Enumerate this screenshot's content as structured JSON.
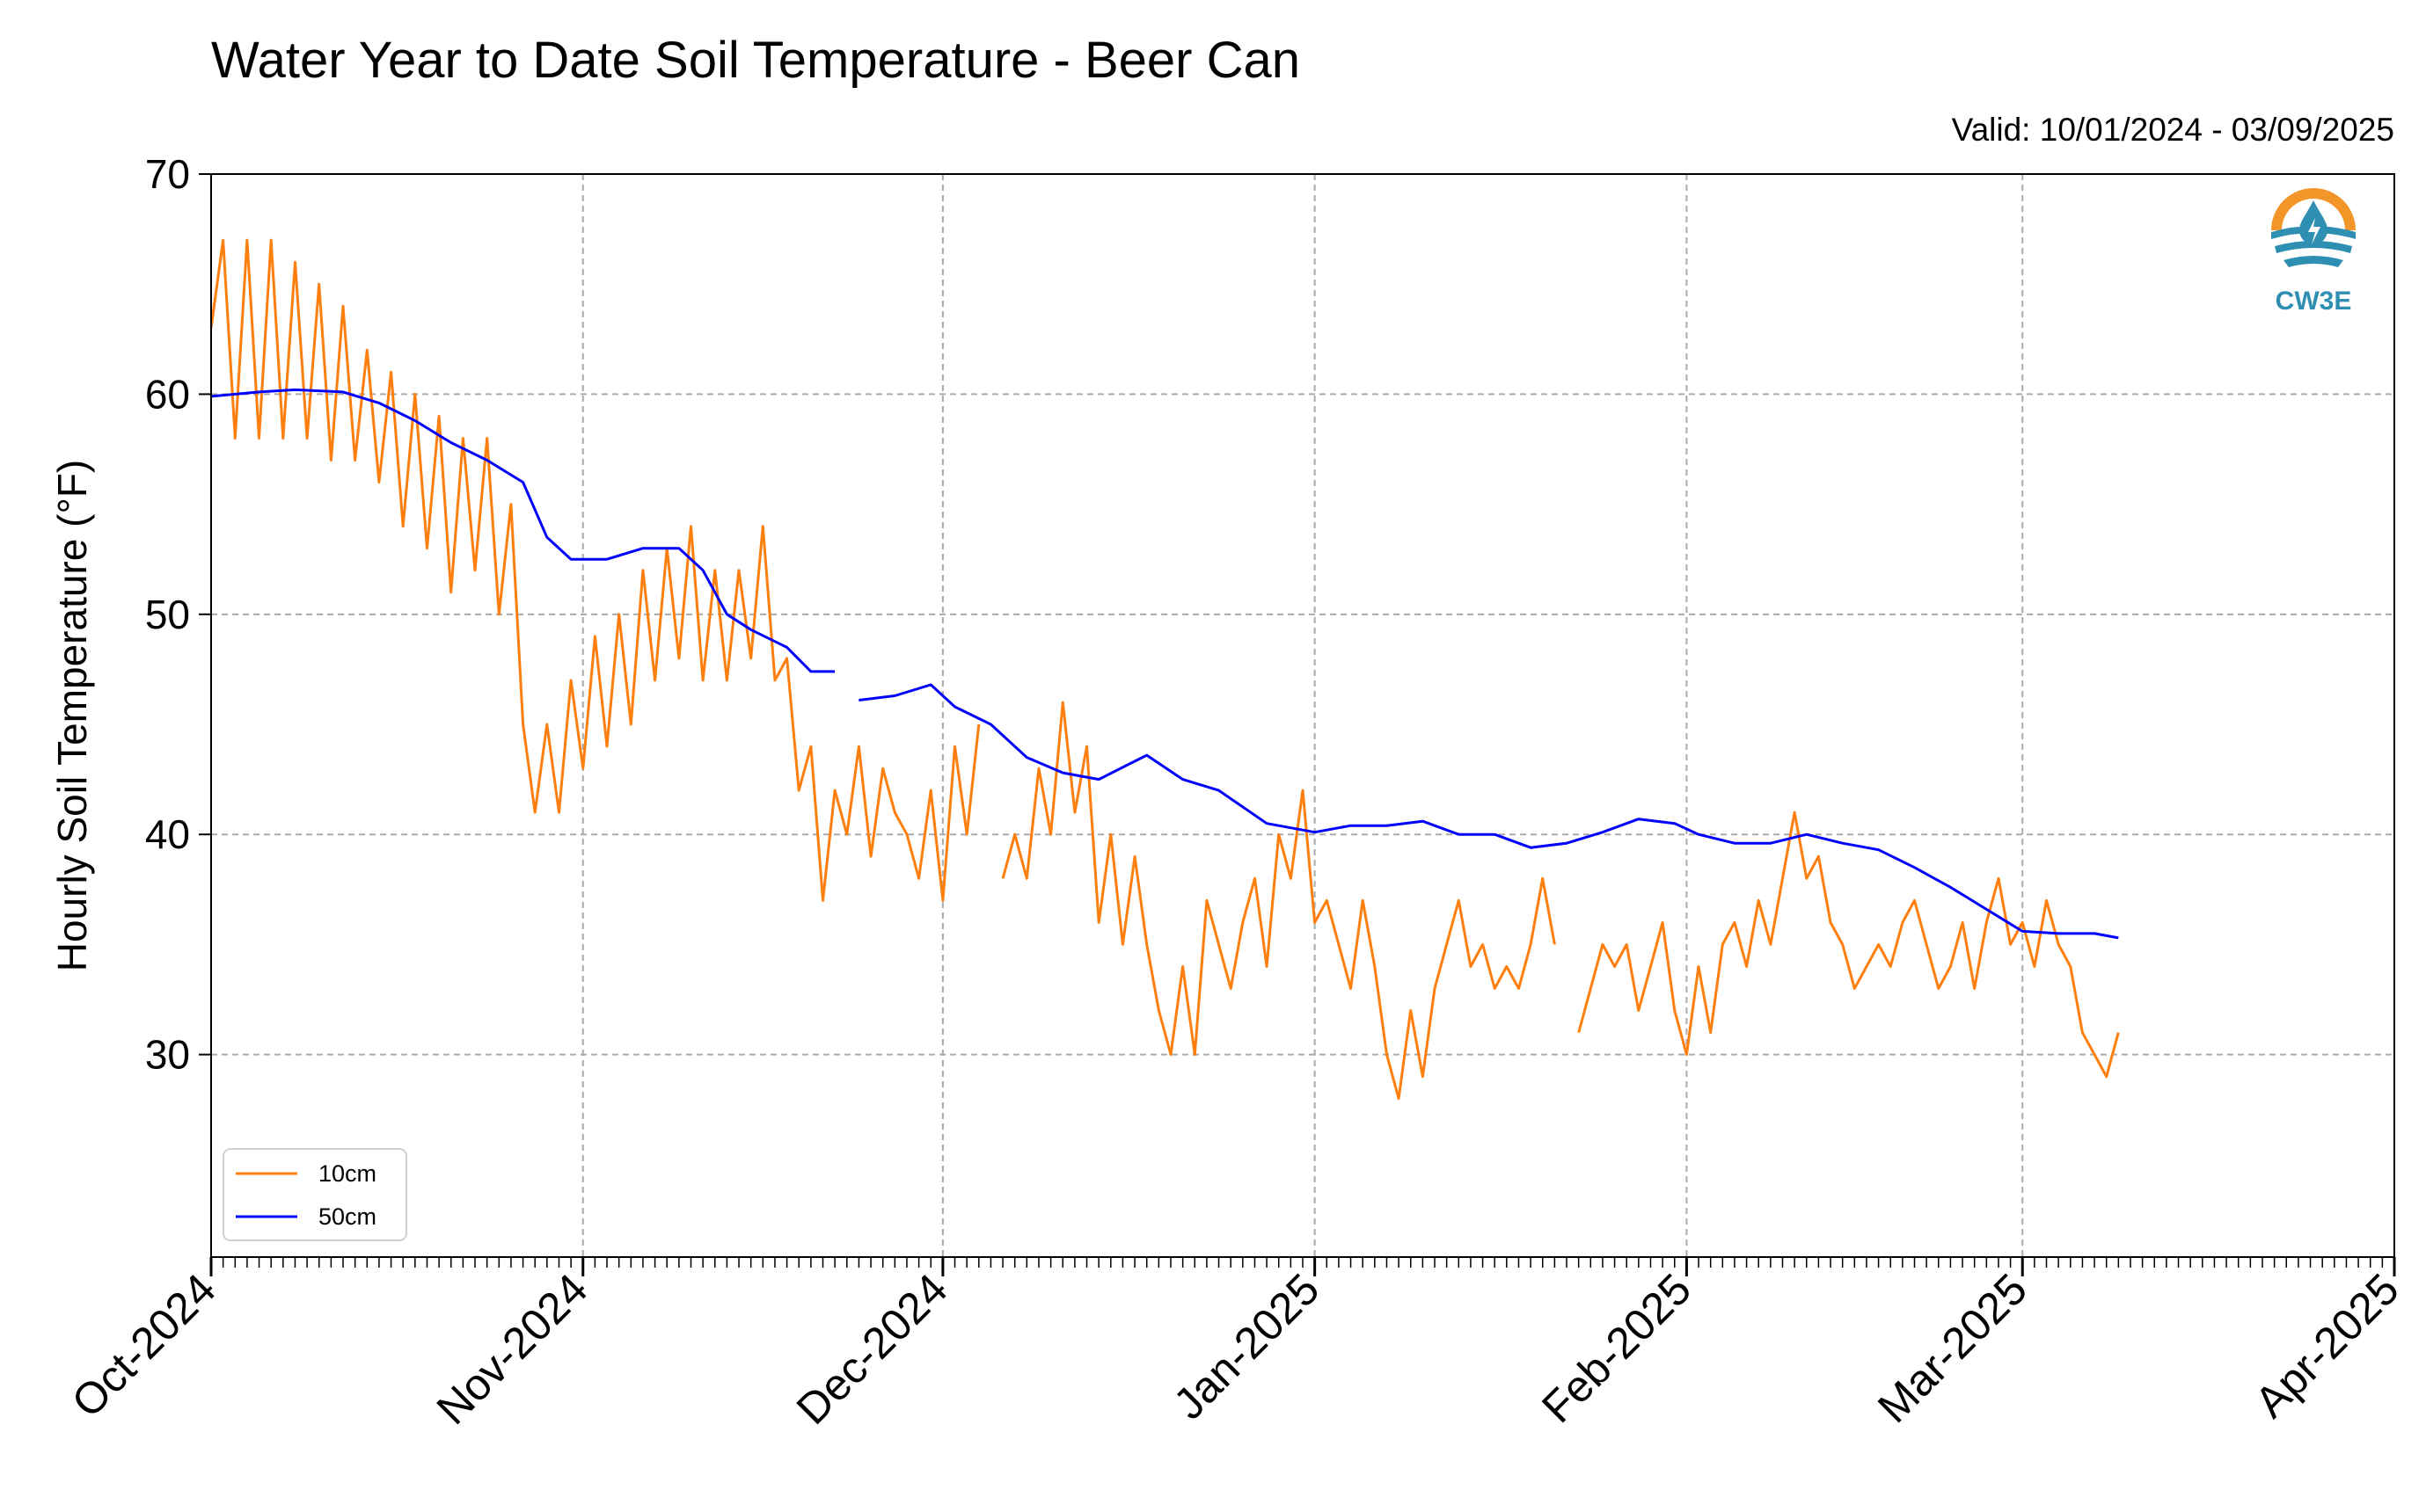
{
  "chart_data": {
    "type": "line",
    "title": "Water Year to Date Soil Temperature - Beer Can",
    "subtitle": "Valid: 10/01/2024 - 03/09/2025",
    "xlabel": "",
    "ylabel": "Hourly Soil Temperature (°F)",
    "ylim": [
      20.8,
      70
    ],
    "xlim": [
      "2024-10-01",
      "2025-04-01"
    ],
    "x_tick_labels": [
      "Oct-2024",
      "Nov-2024",
      "Dec-2024",
      "Jan-2025",
      "Feb-2025",
      "Mar-2025",
      "Apr-2025"
    ],
    "x_tick_dates": [
      "2024-10-01",
      "2024-11-01",
      "2024-12-01",
      "2025-01-01",
      "2025-02-01",
      "2025-03-01",
      "2025-04-01"
    ],
    "y_ticks": [
      30,
      40,
      50,
      60,
      70
    ],
    "grid": true,
    "legend_position": "lower-left",
    "series": [
      {
        "name": "10cm",
        "color": "#ff7f0e",
        "points": [
          [
            "2024-10-01",
            63
          ],
          [
            "2024-10-02",
            67
          ],
          [
            "2024-10-03",
            58
          ],
          [
            "2024-10-04",
            67
          ],
          [
            "2024-10-05",
            58
          ],
          [
            "2024-10-06",
            67
          ],
          [
            "2024-10-07",
            58
          ],
          [
            "2024-10-08",
            66
          ],
          [
            "2024-10-09",
            58
          ],
          [
            "2024-10-10",
            65
          ],
          [
            "2024-10-11",
            57
          ],
          [
            "2024-10-12",
            64
          ],
          [
            "2024-10-13",
            57
          ],
          [
            "2024-10-14",
            62
          ],
          [
            "2024-10-15",
            56
          ],
          [
            "2024-10-16",
            61
          ],
          [
            "2024-10-17",
            54
          ],
          [
            "2024-10-18",
            60
          ],
          [
            "2024-10-19",
            53
          ],
          [
            "2024-10-20",
            59
          ],
          [
            "2024-10-21",
            51
          ],
          [
            "2024-10-22",
            58
          ],
          [
            "2024-10-23",
            52
          ],
          [
            "2024-10-24",
            58
          ],
          [
            "2024-10-25",
            50
          ],
          [
            "2024-10-26",
            55
          ],
          [
            "2024-10-27",
            45
          ],
          [
            "2024-10-28",
            41
          ],
          [
            "2024-10-29",
            45
          ],
          [
            "2024-10-30",
            41
          ],
          [
            "2024-10-31",
            47
          ],
          [
            "2024-11-01",
            43
          ],
          [
            "2024-11-02",
            49
          ],
          [
            "2024-11-03",
            44
          ],
          [
            "2024-11-04",
            50
          ],
          [
            "2024-11-05",
            45
          ],
          [
            "2024-11-06",
            52
          ],
          [
            "2024-11-07",
            47
          ],
          [
            "2024-11-08",
            53
          ],
          [
            "2024-11-09",
            48
          ],
          [
            "2024-11-10",
            54
          ],
          [
            "2024-11-11",
            47
          ],
          [
            "2024-11-12",
            52
          ],
          [
            "2024-11-13",
            47
          ],
          [
            "2024-11-14",
            52
          ],
          [
            "2024-11-15",
            48
          ],
          [
            "2024-11-16",
            54
          ],
          [
            "2024-11-17",
            47
          ],
          [
            "2024-11-18",
            48
          ],
          [
            "2024-11-19",
            42
          ],
          [
            "2024-11-20",
            44
          ],
          [
            "2024-11-21",
            37
          ],
          [
            "2024-11-22",
            42
          ],
          [
            "2024-11-23",
            40
          ],
          [
            "2024-11-24",
            44
          ],
          [
            "2024-11-25",
            39
          ],
          [
            "2024-11-26",
            43
          ],
          [
            "2024-11-27",
            41
          ],
          [
            "2024-11-28",
            40
          ],
          [
            "2024-11-29",
            38
          ],
          [
            "2024-11-30",
            42
          ],
          [
            "2024-12-01",
            37
          ],
          [
            "2024-12-02",
            44
          ],
          [
            "2024-12-03",
            40
          ],
          [
            "2024-12-04",
            45
          ],
          [
            "2024-12-05",
            null
          ],
          [
            "2024-12-06",
            38
          ],
          [
            "2024-12-07",
            40
          ],
          [
            "2024-12-08",
            38
          ],
          [
            "2024-12-09",
            43
          ],
          [
            "2024-12-10",
            40
          ],
          [
            "2024-12-11",
            46
          ],
          [
            "2024-12-12",
            41
          ],
          [
            "2024-12-13",
            44
          ],
          [
            "2024-12-14",
            36
          ],
          [
            "2024-12-15",
            40
          ],
          [
            "2024-12-16",
            35
          ],
          [
            "2024-12-17",
            39
          ],
          [
            "2024-12-18",
            35
          ],
          [
            "2024-12-19",
            32
          ],
          [
            "2024-12-20",
            30
          ],
          [
            "2024-12-21",
            34
          ],
          [
            "2024-12-22",
            30
          ],
          [
            "2024-12-23",
            37
          ],
          [
            "2024-12-24",
            35
          ],
          [
            "2024-12-25",
            33
          ],
          [
            "2024-12-26",
            36
          ],
          [
            "2024-12-27",
            38
          ],
          [
            "2024-12-28",
            34
          ],
          [
            "2024-12-29",
            40
          ],
          [
            "2024-12-30",
            38
          ],
          [
            "2024-12-31",
            42
          ],
          [
            "2025-01-01",
            36
          ],
          [
            "2025-01-02",
            37
          ],
          [
            "2025-01-03",
            35
          ],
          [
            "2025-01-04",
            33
          ],
          [
            "2025-01-05",
            37
          ],
          [
            "2025-01-06",
            34
          ],
          [
            "2025-01-07",
            30
          ],
          [
            "2025-01-08",
            28
          ],
          [
            "2025-01-09",
            32
          ],
          [
            "2025-01-10",
            29
          ],
          [
            "2025-01-11",
            33
          ],
          [
            "2025-01-12",
            35
          ],
          [
            "2025-01-13",
            37
          ],
          [
            "2025-01-14",
            34
          ],
          [
            "2025-01-15",
            35
          ],
          [
            "2025-01-16",
            33
          ],
          [
            "2025-01-17",
            34
          ],
          [
            "2025-01-18",
            33
          ],
          [
            "2025-01-19",
            35
          ],
          [
            "2025-01-20",
            38
          ],
          [
            "2025-01-21",
            35
          ],
          [
            "2025-01-22",
            null
          ],
          [
            "2025-01-23",
            31
          ],
          [
            "2025-01-24",
            33
          ],
          [
            "2025-01-25",
            35
          ],
          [
            "2025-01-26",
            34
          ],
          [
            "2025-01-27",
            35
          ],
          [
            "2025-01-28",
            32
          ],
          [
            "2025-01-29",
            34
          ],
          [
            "2025-01-30",
            36
          ],
          [
            "2025-01-31",
            32
          ],
          [
            "2025-02-01",
            30
          ],
          [
            "2025-02-02",
            34
          ],
          [
            "2025-02-03",
            31
          ],
          [
            "2025-02-04",
            35
          ],
          [
            "2025-02-05",
            36
          ],
          [
            "2025-02-06",
            34
          ],
          [
            "2025-02-07",
            37
          ],
          [
            "2025-02-08",
            35
          ],
          [
            "2025-02-09",
            38
          ],
          [
            "2025-02-10",
            41
          ],
          [
            "2025-02-11",
            38
          ],
          [
            "2025-02-12",
            39
          ],
          [
            "2025-02-13",
            36
          ],
          [
            "2025-02-14",
            35
          ],
          [
            "2025-02-15",
            33
          ],
          [
            "2025-02-16",
            34
          ],
          [
            "2025-02-17",
            35
          ],
          [
            "2025-02-18",
            34
          ],
          [
            "2025-02-19",
            36
          ],
          [
            "2025-02-20",
            37
          ],
          [
            "2025-02-21",
            35
          ],
          [
            "2025-02-22",
            33
          ],
          [
            "2025-02-23",
            34
          ],
          [
            "2025-02-24",
            36
          ],
          [
            "2025-02-25",
            33
          ],
          [
            "2025-02-26",
            36
          ],
          [
            "2025-02-27",
            38
          ],
          [
            "2025-02-28",
            35
          ],
          [
            "2025-03-01",
            36
          ],
          [
            "2025-03-02",
            34
          ],
          [
            "2025-03-03",
            37
          ],
          [
            "2025-03-04",
            35
          ],
          [
            "2025-03-05",
            34
          ],
          [
            "2025-03-06",
            31
          ],
          [
            "2025-03-07",
            30
          ],
          [
            "2025-03-08",
            29
          ],
          [
            "2025-03-09",
            31
          ]
        ]
      },
      {
        "name": "50cm",
        "color": "#0000ff",
        "points": [
          [
            "2024-10-01",
            59.9
          ],
          [
            "2024-10-05",
            60.1
          ],
          [
            "2024-10-08",
            60.2
          ],
          [
            "2024-10-12",
            60.1
          ],
          [
            "2024-10-15",
            59.6
          ],
          [
            "2024-10-18",
            58.8
          ],
          [
            "2024-10-21",
            57.8
          ],
          [
            "2024-10-24",
            57
          ],
          [
            "2024-10-27",
            56
          ],
          [
            "2024-10-29",
            53.5
          ],
          [
            "2024-10-31",
            52.5
          ],
          [
            "2024-11-03",
            52.5
          ],
          [
            "2024-11-06",
            53
          ],
          [
            "2024-11-09",
            53
          ],
          [
            "2024-11-11",
            52
          ],
          [
            "2024-11-13",
            50
          ],
          [
            "2024-11-15",
            49.3
          ],
          [
            "2024-11-18",
            48.5
          ],
          [
            "2024-11-20",
            47.4
          ],
          [
            "2024-11-22",
            47.4
          ],
          [
            "2024-11-23",
            null
          ],
          [
            "2024-11-24",
            46.1
          ],
          [
            "2024-11-27",
            46.3
          ],
          [
            "2024-11-30",
            46.8
          ],
          [
            "2024-12-02",
            45.8
          ],
          [
            "2024-12-05",
            45
          ],
          [
            "2024-12-08",
            43.5
          ],
          [
            "2024-12-11",
            42.8
          ],
          [
            "2024-12-14",
            42.5
          ],
          [
            "2024-12-18",
            43.6
          ],
          [
            "2024-12-21",
            42.5
          ],
          [
            "2024-12-24",
            42
          ],
          [
            "2024-12-28",
            40.5
          ],
          [
            "2025-01-01",
            40.1
          ],
          [
            "2025-01-04",
            40.4
          ],
          [
            "2025-01-07",
            40.4
          ],
          [
            "2025-01-10",
            40.6
          ],
          [
            "2025-01-13",
            40
          ],
          [
            "2025-01-16",
            40
          ],
          [
            "2025-01-19",
            39.4
          ],
          [
            "2025-01-22",
            39.6
          ],
          [
            "2025-01-25",
            40.1
          ],
          [
            "2025-01-28",
            40.7
          ],
          [
            "2025-01-31",
            40.5
          ],
          [
            "2025-02-02",
            40
          ],
          [
            "2025-02-05",
            39.6
          ],
          [
            "2025-02-08",
            39.6
          ],
          [
            "2025-02-11",
            40
          ],
          [
            "2025-02-14",
            39.6
          ],
          [
            "2025-02-17",
            39.3
          ],
          [
            "2025-02-20",
            38.5
          ],
          [
            "2025-02-23",
            37.6
          ],
          [
            "2025-02-26",
            36.6
          ],
          [
            "2025-03-01",
            35.6
          ],
          [
            "2025-03-04",
            35.5
          ],
          [
            "2025-03-07",
            35.5
          ],
          [
            "2025-03-09",
            35.3
          ]
        ]
      }
    ]
  },
  "legend": {
    "items": [
      {
        "label": "10cm",
        "color": "#ff7f0e"
      },
      {
        "label": "50cm",
        "color": "#0000ff"
      }
    ]
  },
  "logo": {
    "text": "CW3E",
    "name": "cw3e-logo",
    "colors": {
      "ring": "#f2962a",
      "water": "#2f8fb3"
    }
  }
}
